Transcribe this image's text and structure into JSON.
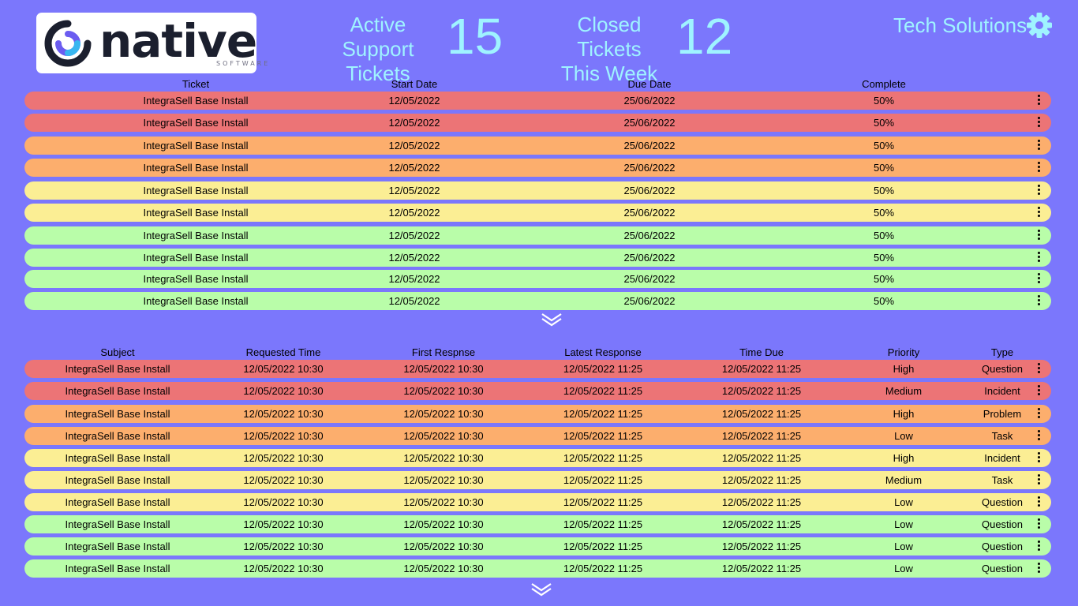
{
  "logo": {
    "wordmark": "native",
    "subtitle": "SOFTWARE"
  },
  "stats": {
    "active_label_1": "Active",
    "active_label_2": "Support Tickets",
    "active_value": "15",
    "closed_label_1": "Closed Tickets",
    "closed_label_2": "This Week",
    "closed_value": "12"
  },
  "company": "Tech Solutions",
  "colors": {
    "background": "#7b77fc",
    "accent_text": "#9ff3ff",
    "red": "#ec7476",
    "orange": "#fcae6d",
    "yellow": "#fbee94",
    "green": "#b9fda9"
  },
  "tickets_table": {
    "headers": [
      "Ticket",
      "Start Date",
      "Due Date",
      "Complete"
    ],
    "rows": [
      {
        "status": "red",
        "ticket": "IntegraSell Base Install",
        "start": "12/05/2022",
        "due": "25/06/2022",
        "complete": "50%"
      },
      {
        "status": "red",
        "ticket": "IntegraSell Base Install",
        "start": "12/05/2022",
        "due": "25/06/2022",
        "complete": "50%"
      },
      {
        "status": "orange",
        "ticket": "IntegraSell Base Install",
        "start": "12/05/2022",
        "due": "25/06/2022",
        "complete": "50%"
      },
      {
        "status": "orange",
        "ticket": "IntegraSell Base Install",
        "start": "12/05/2022",
        "due": "25/06/2022",
        "complete": "50%"
      },
      {
        "status": "yellow",
        "ticket": "IntegraSell Base Install",
        "start": "12/05/2022",
        "due": "25/06/2022",
        "complete": "50%"
      },
      {
        "status": "yellow",
        "ticket": "IntegraSell Base Install",
        "start": "12/05/2022",
        "due": "25/06/2022",
        "complete": "50%"
      },
      {
        "status": "green",
        "ticket": "IntegraSell Base Install",
        "start": "12/05/2022",
        "due": "25/06/2022",
        "complete": "50%"
      },
      {
        "status": "green",
        "ticket": "IntegraSell Base Install",
        "start": "12/05/2022",
        "due": "25/06/2022",
        "complete": "50%"
      },
      {
        "status": "green",
        "ticket": "IntegraSell Base Install",
        "start": "12/05/2022",
        "due": "25/06/2022",
        "complete": "50%"
      },
      {
        "status": "green",
        "ticket": "IntegraSell Base Install",
        "start": "12/05/2022",
        "due": "25/06/2022",
        "complete": "50%"
      }
    ]
  },
  "requests_table": {
    "headers": [
      "Subject",
      "Requested Time",
      "First Respnse",
      "Latest Response",
      "Time Due",
      "Priority",
      "Type"
    ],
    "rows": [
      {
        "status": "red",
        "subject": "IntegraSell Base Install",
        "requested": "12/05/2022 10:30",
        "first": "12/05/2022 10:30",
        "latest": "12/05/2022 11:25",
        "due": "12/05/2022 11:25",
        "priority": "High",
        "type": "Question"
      },
      {
        "status": "red",
        "subject": "IntegraSell Base Install",
        "requested": "12/05/2022 10:30",
        "first": "12/05/2022 10:30",
        "latest": "12/05/2022 11:25",
        "due": "12/05/2022 11:25",
        "priority": "Medium",
        "type": "Incident"
      },
      {
        "status": "orange",
        "subject": "IntegraSell Base Install",
        "requested": "12/05/2022 10:30",
        "first": "12/05/2022 10:30",
        "latest": "12/05/2022 11:25",
        "due": "12/05/2022 11:25",
        "priority": "High",
        "type": "Problem"
      },
      {
        "status": "orange",
        "subject": "IntegraSell Base Install",
        "requested": "12/05/2022 10:30",
        "first": "12/05/2022 10:30",
        "latest": "12/05/2022 11:25",
        "due": "12/05/2022 11:25",
        "priority": "Low",
        "type": "Task"
      },
      {
        "status": "yellow",
        "subject": "IntegraSell Base Install",
        "requested": "12/05/2022 10:30",
        "first": "12/05/2022 10:30",
        "latest": "12/05/2022 11:25",
        "due": "12/05/2022 11:25",
        "priority": "High",
        "type": "Incident"
      },
      {
        "status": "yellow",
        "subject": "IntegraSell Base Install",
        "requested": "12/05/2022 10:30",
        "first": "12/05/2022 10:30",
        "latest": "12/05/2022 11:25",
        "due": "12/05/2022 11:25",
        "priority": "Medium",
        "type": "Task"
      },
      {
        "status": "yellow",
        "subject": "IntegraSell Base Install",
        "requested": "12/05/2022 10:30",
        "first": "12/05/2022 10:30",
        "latest": "12/05/2022 11:25",
        "due": "12/05/2022 11:25",
        "priority": "Low",
        "type": "Question"
      },
      {
        "status": "green",
        "subject": "IntegraSell Base Install",
        "requested": "12/05/2022 10:30",
        "first": "12/05/2022 10:30",
        "latest": "12/05/2022 11:25",
        "due": "12/05/2022 11:25",
        "priority": "Low",
        "type": "Question"
      },
      {
        "status": "green",
        "subject": "IntegraSell Base Install",
        "requested": "12/05/2022 10:30",
        "first": "12/05/2022 10:30",
        "latest": "12/05/2022 11:25",
        "due": "12/05/2022 11:25",
        "priority": "Low",
        "type": "Question"
      },
      {
        "status": "green",
        "subject": "IntegraSell Base Install",
        "requested": "12/05/2022 10:30",
        "first": "12/05/2022 10:30",
        "latest": "12/05/2022 11:25",
        "due": "12/05/2022 11:25",
        "priority": "Low",
        "type": "Question"
      }
    ]
  },
  "icons": {
    "row_menu": "more-vertical-icon",
    "expand": "double-chevron-down-icon",
    "settings": "gear-icon",
    "logo": "native-logo-icon"
  }
}
